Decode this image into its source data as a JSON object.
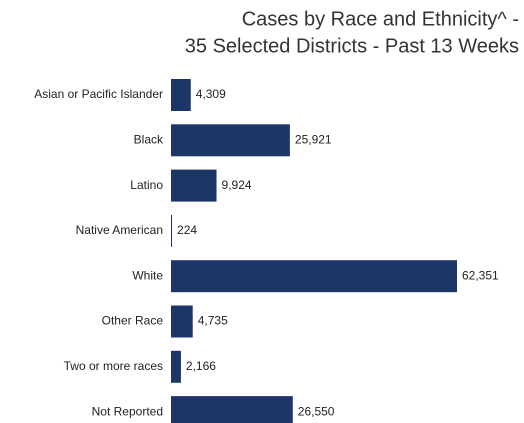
{
  "chart_data": {
    "type": "barh",
    "title": [
      "Cases by Race and Ethnicity^ -",
      "35 Selected Districts - Past 13 Weeks"
    ],
    "categories": [
      "Asian or Pacific Islander",
      "Black",
      "Latino",
      "Native American",
      "White",
      "Other Race",
      "Two or more races",
      "Not Reported"
    ],
    "values": [
      4309,
      25921,
      9924,
      224,
      62351,
      4735,
      2166,
      26550
    ],
    "value_labels": [
      "4,309",
      "25,921",
      "9,924",
      "224",
      "62,351",
      "4,735",
      "2,166",
      "26,550"
    ],
    "color": "#1c3766"
  }
}
